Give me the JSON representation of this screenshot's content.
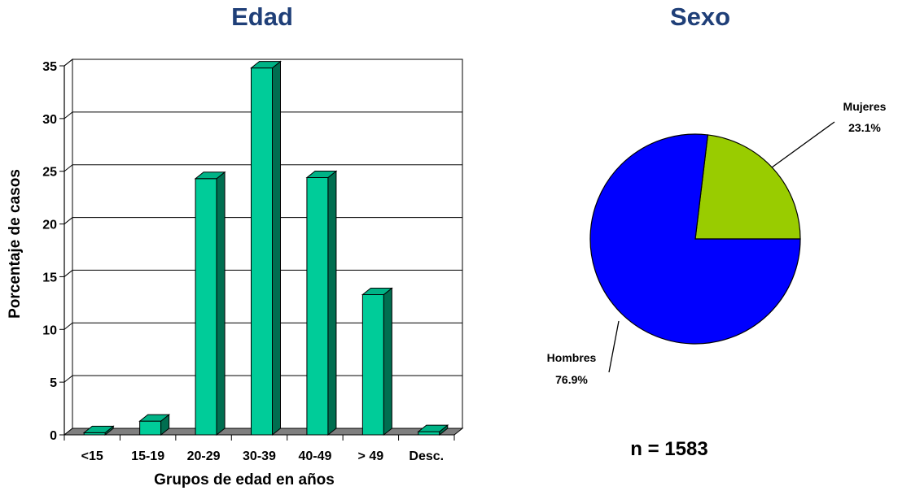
{
  "colors": {
    "title": "#1f3f78",
    "bar_front": "#00cc99",
    "bar_side": "#006e50",
    "bar_top": "#00b386",
    "floor": "#7f7f7f",
    "pie_hombres": "#0000ff",
    "pie_mujeres": "#99cc00"
  },
  "chart_data": [
    {
      "type": "bar",
      "title": "Edad",
      "xlabel": "Grupos de edad en años",
      "ylabel": "Porcentaje de casos",
      "categories": [
        "<15",
        "15-19",
        "20-29",
        "30-39",
        "40-49",
        "> 49",
        "Desc."
      ],
      "values": [
        0.2,
        1.3,
        24.3,
        34.8,
        24.4,
        13.3,
        0.3
      ],
      "ylim": [
        0,
        35
      ],
      "yticks": [
        0,
        5,
        10,
        15,
        20,
        25,
        30,
        35
      ],
      "grid": true,
      "style": "3d-column"
    },
    {
      "type": "pie",
      "title": "Sexo",
      "slices": [
        {
          "label": "Mujeres",
          "value_label": "23.1%",
          "value": 23.1
        },
        {
          "label": "Hombres",
          "value_label": "76.9%",
          "value": 76.9
        }
      ],
      "annotation": "n = 1583"
    }
  ]
}
